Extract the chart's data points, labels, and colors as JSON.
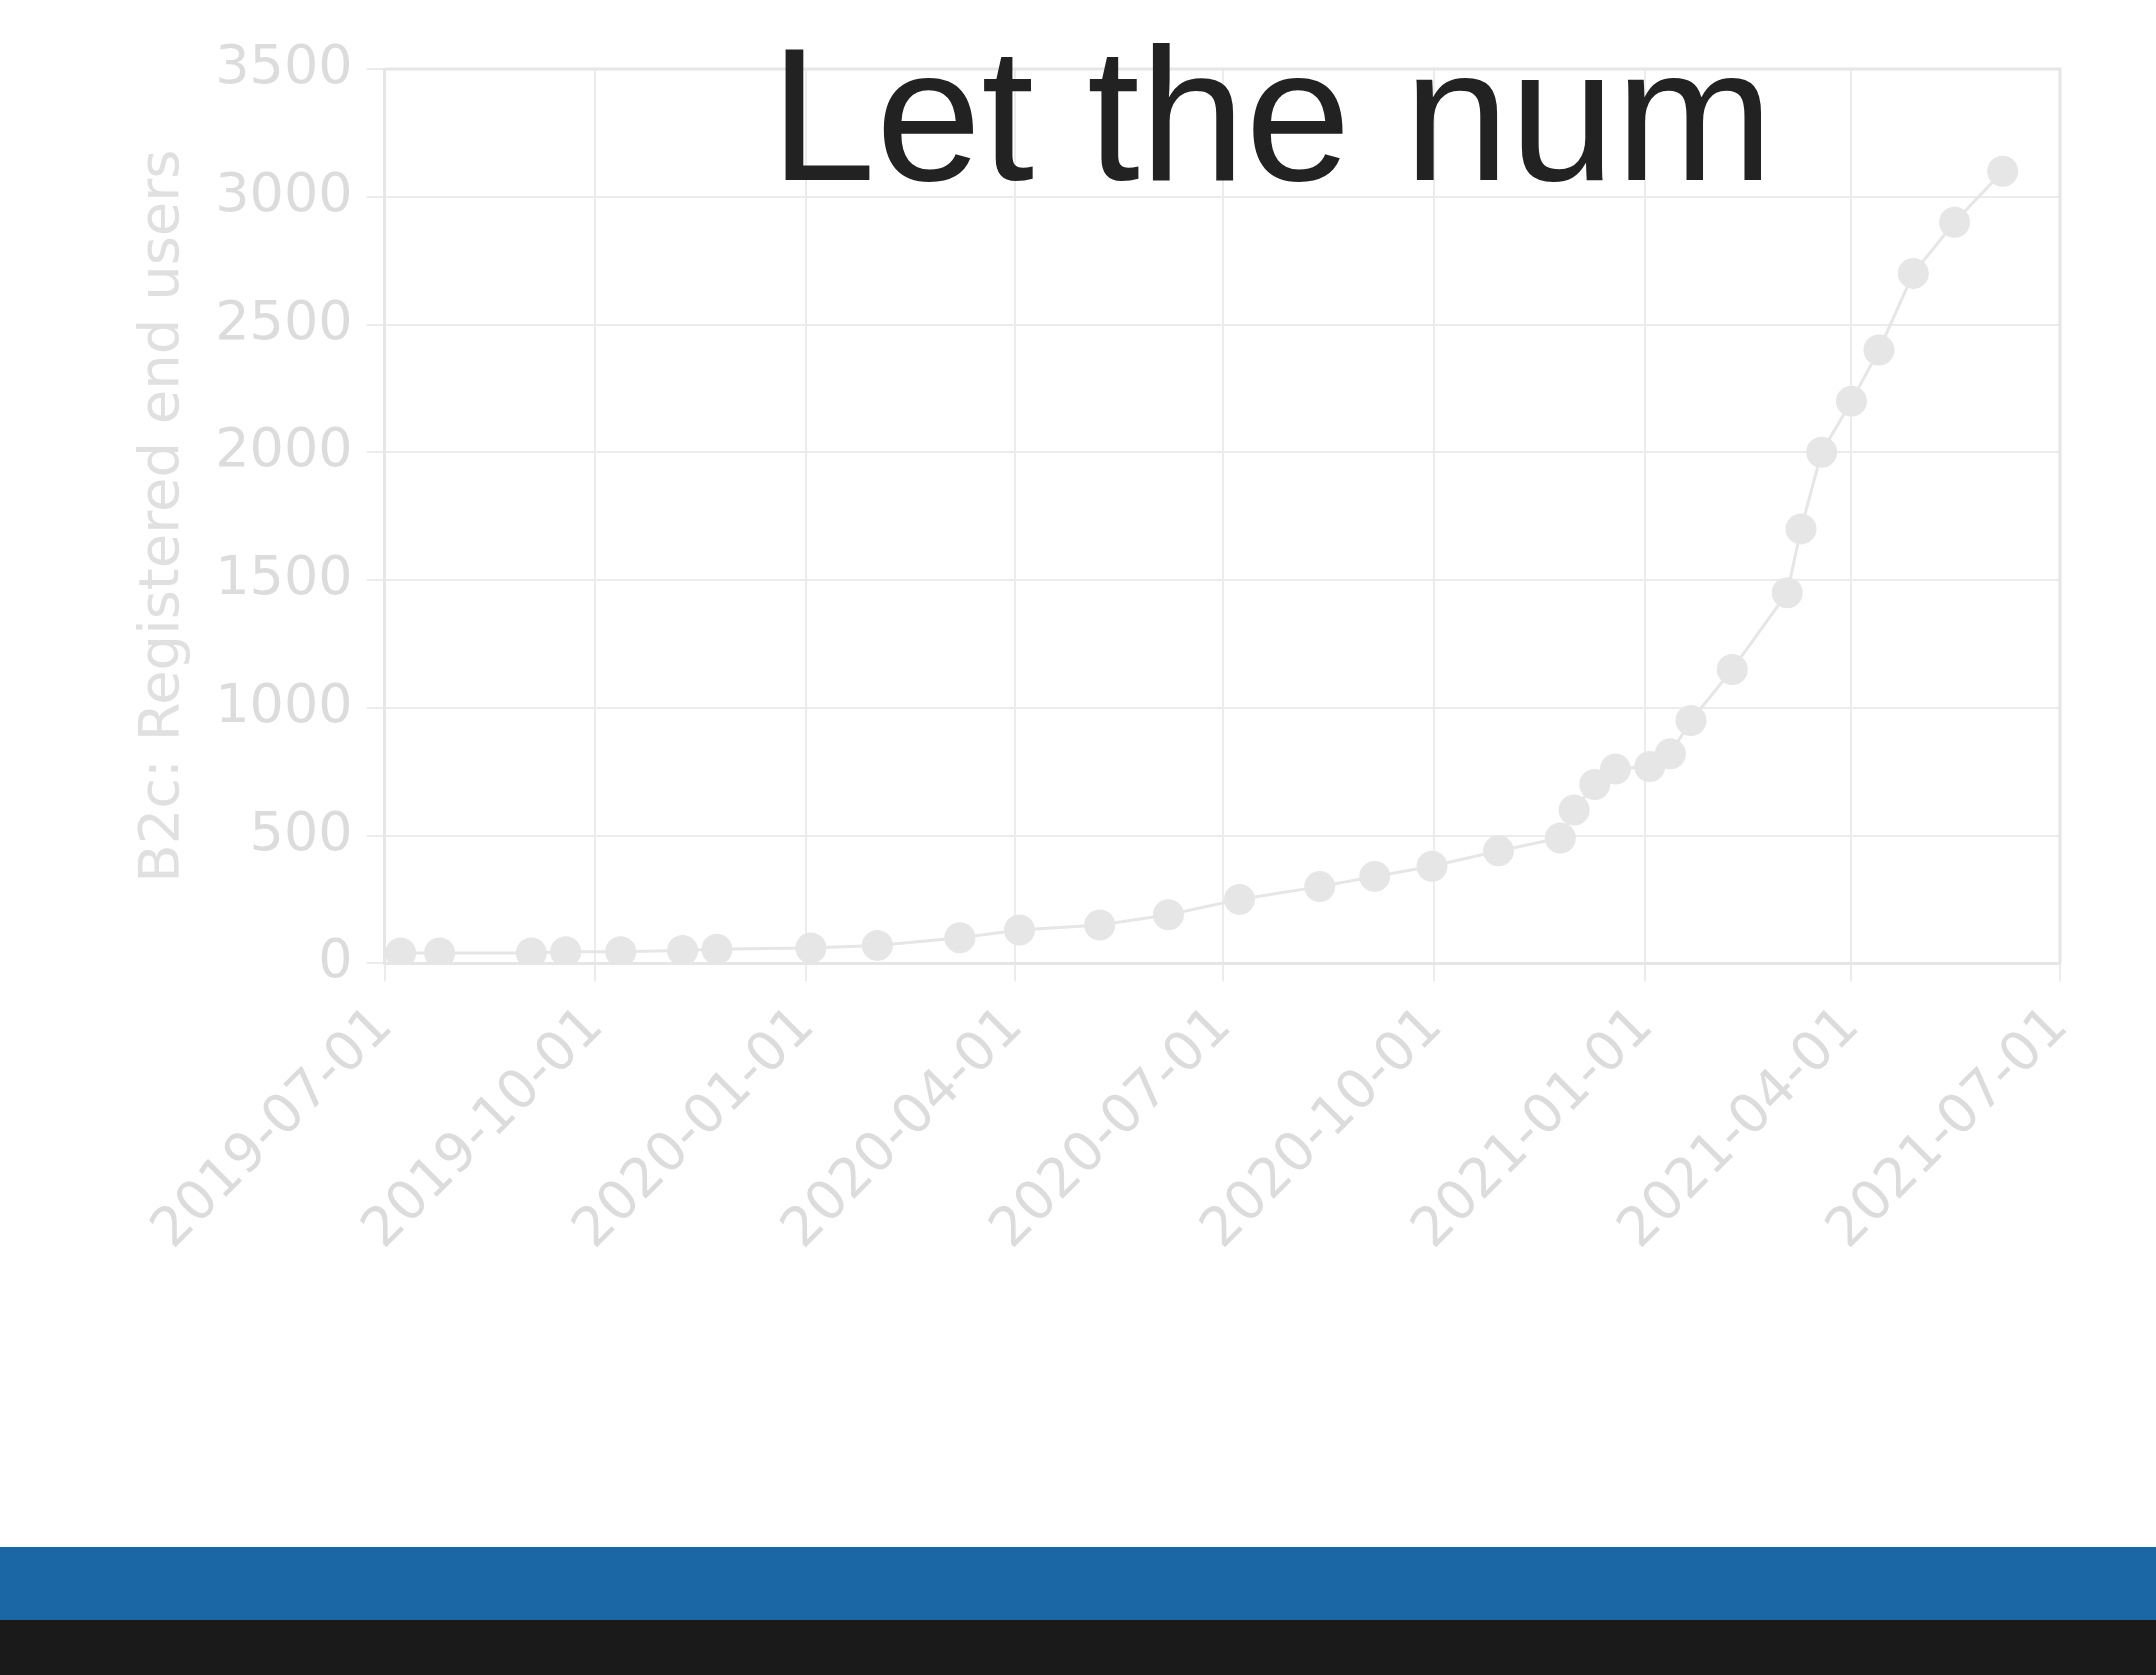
{
  "chart_data": {
    "type": "line",
    "title": "Let the num",
    "ylabel": "B2c: Registered end users",
    "x": [
      "2019-07-08",
      "2019-07-25",
      "2019-09-03",
      "2019-09-18",
      "2019-10-12",
      "2019-11-08",
      "2019-11-23",
      "2020-01-03",
      "2020-02-01",
      "2020-03-08",
      "2020-04-03",
      "2020-05-08",
      "2020-06-07",
      "2020-07-08",
      "2020-08-12",
      "2020-09-05",
      "2020-09-30",
      "2020-10-29",
      "2020-11-25",
      "2020-12-01",
      "2020-12-10",
      "2020-12-19",
      "2021-01-03",
      "2021-01-12",
      "2021-01-21",
      "2021-02-08",
      "2021-03-04",
      "2021-03-10",
      "2021-03-19",
      "2021-04-01",
      "2021-04-13",
      "2021-04-28",
      "2021-05-16",
      "2021-06-06"
    ],
    "series": [
      {
        "color": "#e6e6e6",
        "values": [
          40,
          40,
          40,
          45,
          45,
          50,
          55,
          60,
          70,
          100,
          130,
          150,
          190,
          250,
          300,
          340,
          380,
          440,
          490,
          600,
          700,
          760,
          770,
          820,
          950,
          1150,
          1450,
          1700,
          2000,
          2200,
          2400,
          2700,
          2900,
          3100
        ]
      }
    ],
    "xlim": [
      "2019-07-01",
      "2021-07-01"
    ],
    "xticks": [
      "2019-07-01",
      "2019-10-01",
      "2020-01-01",
      "2020-04-01",
      "2020-07-01",
      "2020-10-01",
      "2021-01-01",
      "2021-04-01",
      "2021-07-01"
    ],
    "ylim": [
      0,
      3500
    ],
    "yticks": [
      0,
      500,
      1000,
      1500,
      2000,
      2500,
      3000,
      3500
    ],
    "grid": true,
    "marker": "circle",
    "line_style": "solid",
    "legend": false
  }
}
